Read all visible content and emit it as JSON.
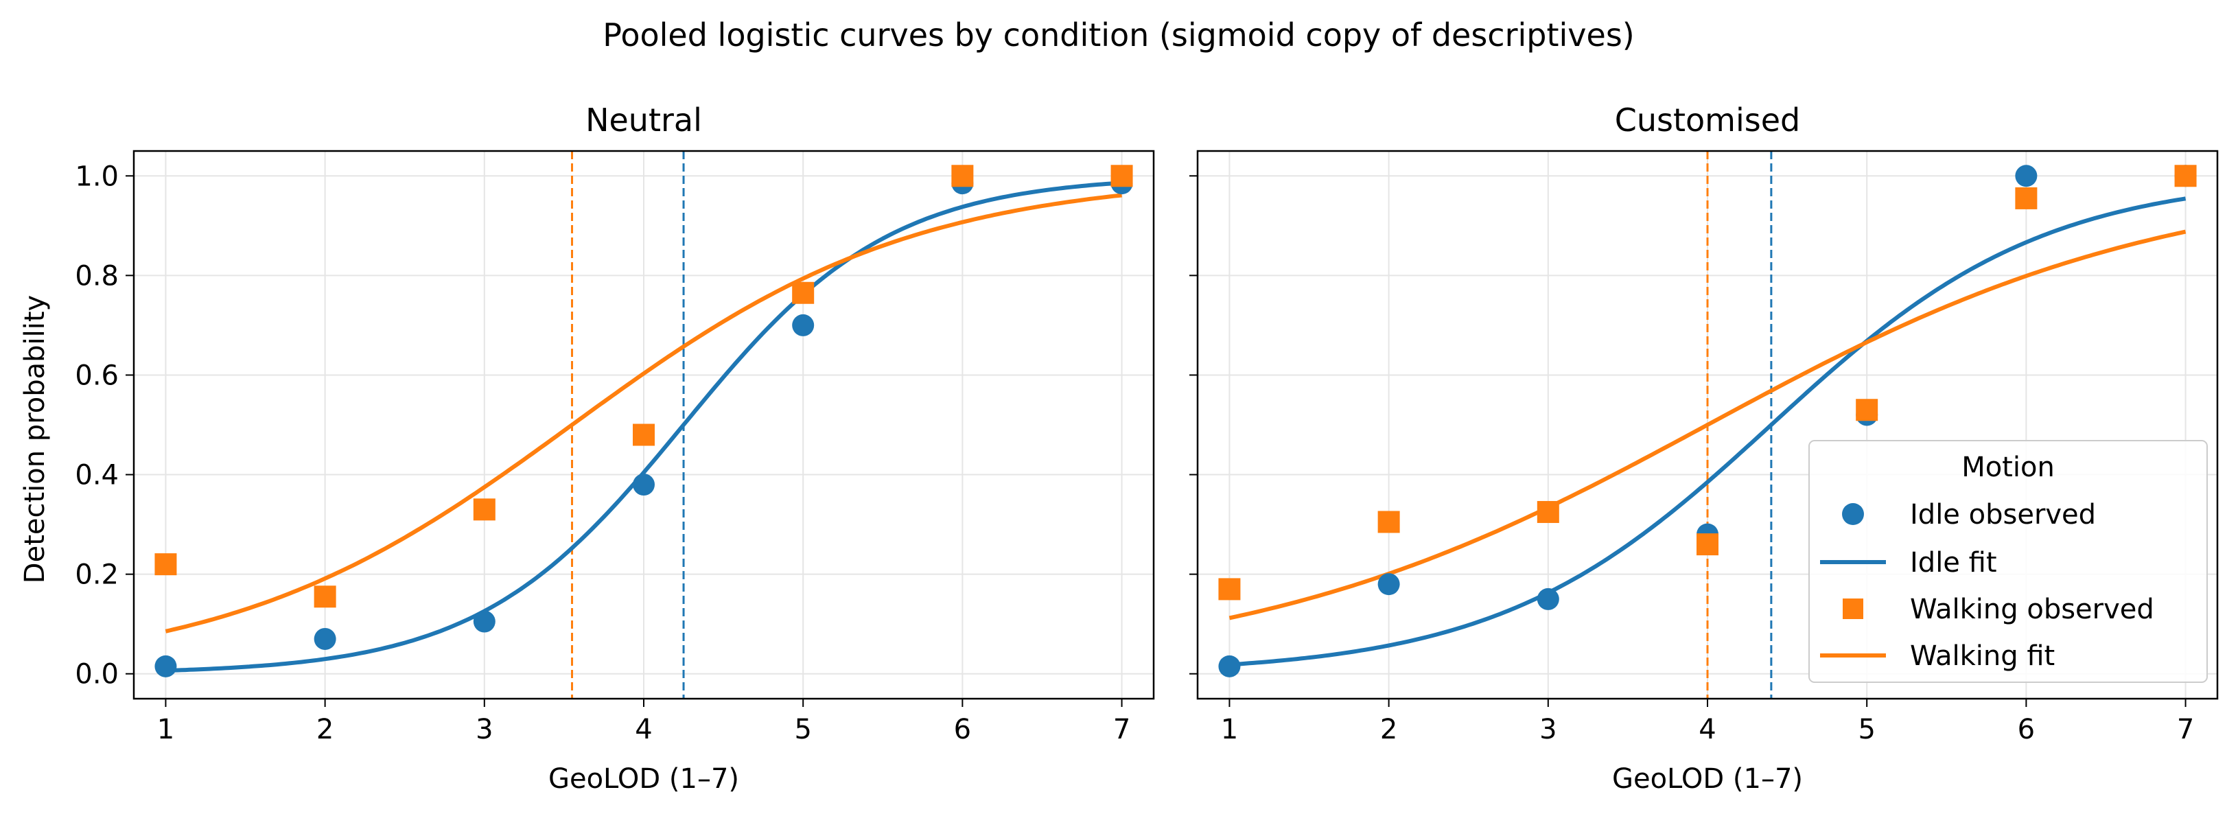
{
  "figure": {
    "title": "Pooled logistic curves by condition (sigmoid copy of descriptives)",
    "ylabel": "Detection probability"
  },
  "colors": {
    "idle": "#1f77b4",
    "walking": "#ff7f0e",
    "grid": "#e5e5e5"
  },
  "legend": {
    "title": "Motion",
    "entries": [
      "Idle observed",
      "Idle fit",
      "Walking observed",
      "Walking fit"
    ],
    "placement": "lower-right of Customised panel"
  },
  "chart_data": [
    {
      "type": "scatter",
      "title": "Neutral",
      "xlabel": "GeoLOD (1–7)",
      "ylabel": "Detection probability",
      "xlim": [
        0.8,
        7.2
      ],
      "ylim": [
        -0.05,
        1.05
      ],
      "xticks": [
        "1",
        "2",
        "3",
        "4",
        "5",
        "6",
        "7"
      ],
      "yticks": [
        "0.0",
        "0.2",
        "0.4",
        "0.6",
        "0.8",
        "1.0"
      ],
      "grid": true,
      "series": [
        {
          "name": "Idle observed",
          "kind": "points",
          "marker": "circle",
          "x": [
            1,
            2,
            3,
            4,
            5,
            6,
            7
          ],
          "y": [
            0.015,
            0.07,
            0.105,
            0.38,
            0.7,
            0.985,
            0.985
          ]
        },
        {
          "name": "Walking observed",
          "kind": "points",
          "marker": "square",
          "x": [
            1,
            2,
            3,
            4,
            5,
            6,
            7
          ],
          "y": [
            0.22,
            0.155,
            0.33,
            0.48,
            0.765,
            1.0,
            1.0
          ]
        },
        {
          "name": "Idle fit",
          "kind": "logistic",
          "midpoint": 4.25,
          "slope": 1.55
        },
        {
          "name": "Walking fit",
          "kind": "logistic",
          "midpoint": 3.55,
          "slope": 0.93
        }
      ],
      "vlines": [
        {
          "series": "Idle fit",
          "x": 4.25
        },
        {
          "series": "Walking fit",
          "x": 3.55
        }
      ]
    },
    {
      "type": "scatter",
      "title": "Customised",
      "xlabel": "GeoLOD (1–7)",
      "xlim": [
        0.8,
        7.2
      ],
      "ylim": [
        -0.05,
        1.05
      ],
      "xticks": [
        "1",
        "2",
        "3",
        "4",
        "5",
        "6",
        "7"
      ],
      "grid": true,
      "series": [
        {
          "name": "Idle observed",
          "kind": "points",
          "marker": "circle",
          "x": [
            1,
            2,
            3,
            4,
            5,
            6,
            7
          ],
          "y": [
            0.015,
            0.18,
            0.15,
            0.28,
            0.52,
            1.0,
            1.0
          ]
        },
        {
          "name": "Walking observed",
          "kind": "points",
          "marker": "square",
          "x": [
            1,
            2,
            3,
            4,
            5,
            6,
            7
          ],
          "y": [
            0.17,
            0.305,
            0.325,
            0.26,
            0.53,
            0.955,
            1.0
          ]
        },
        {
          "name": "Idle fit",
          "kind": "logistic",
          "midpoint": 4.4,
          "slope": 1.17
        },
        {
          "name": "Walking fit",
          "kind": "logistic",
          "midpoint": 4.0,
          "slope": 0.69
        }
      ],
      "vlines": [
        {
          "series": "Idle fit",
          "x": 4.4
        },
        {
          "series": "Walking fit",
          "x": 4.0
        }
      ]
    }
  ]
}
